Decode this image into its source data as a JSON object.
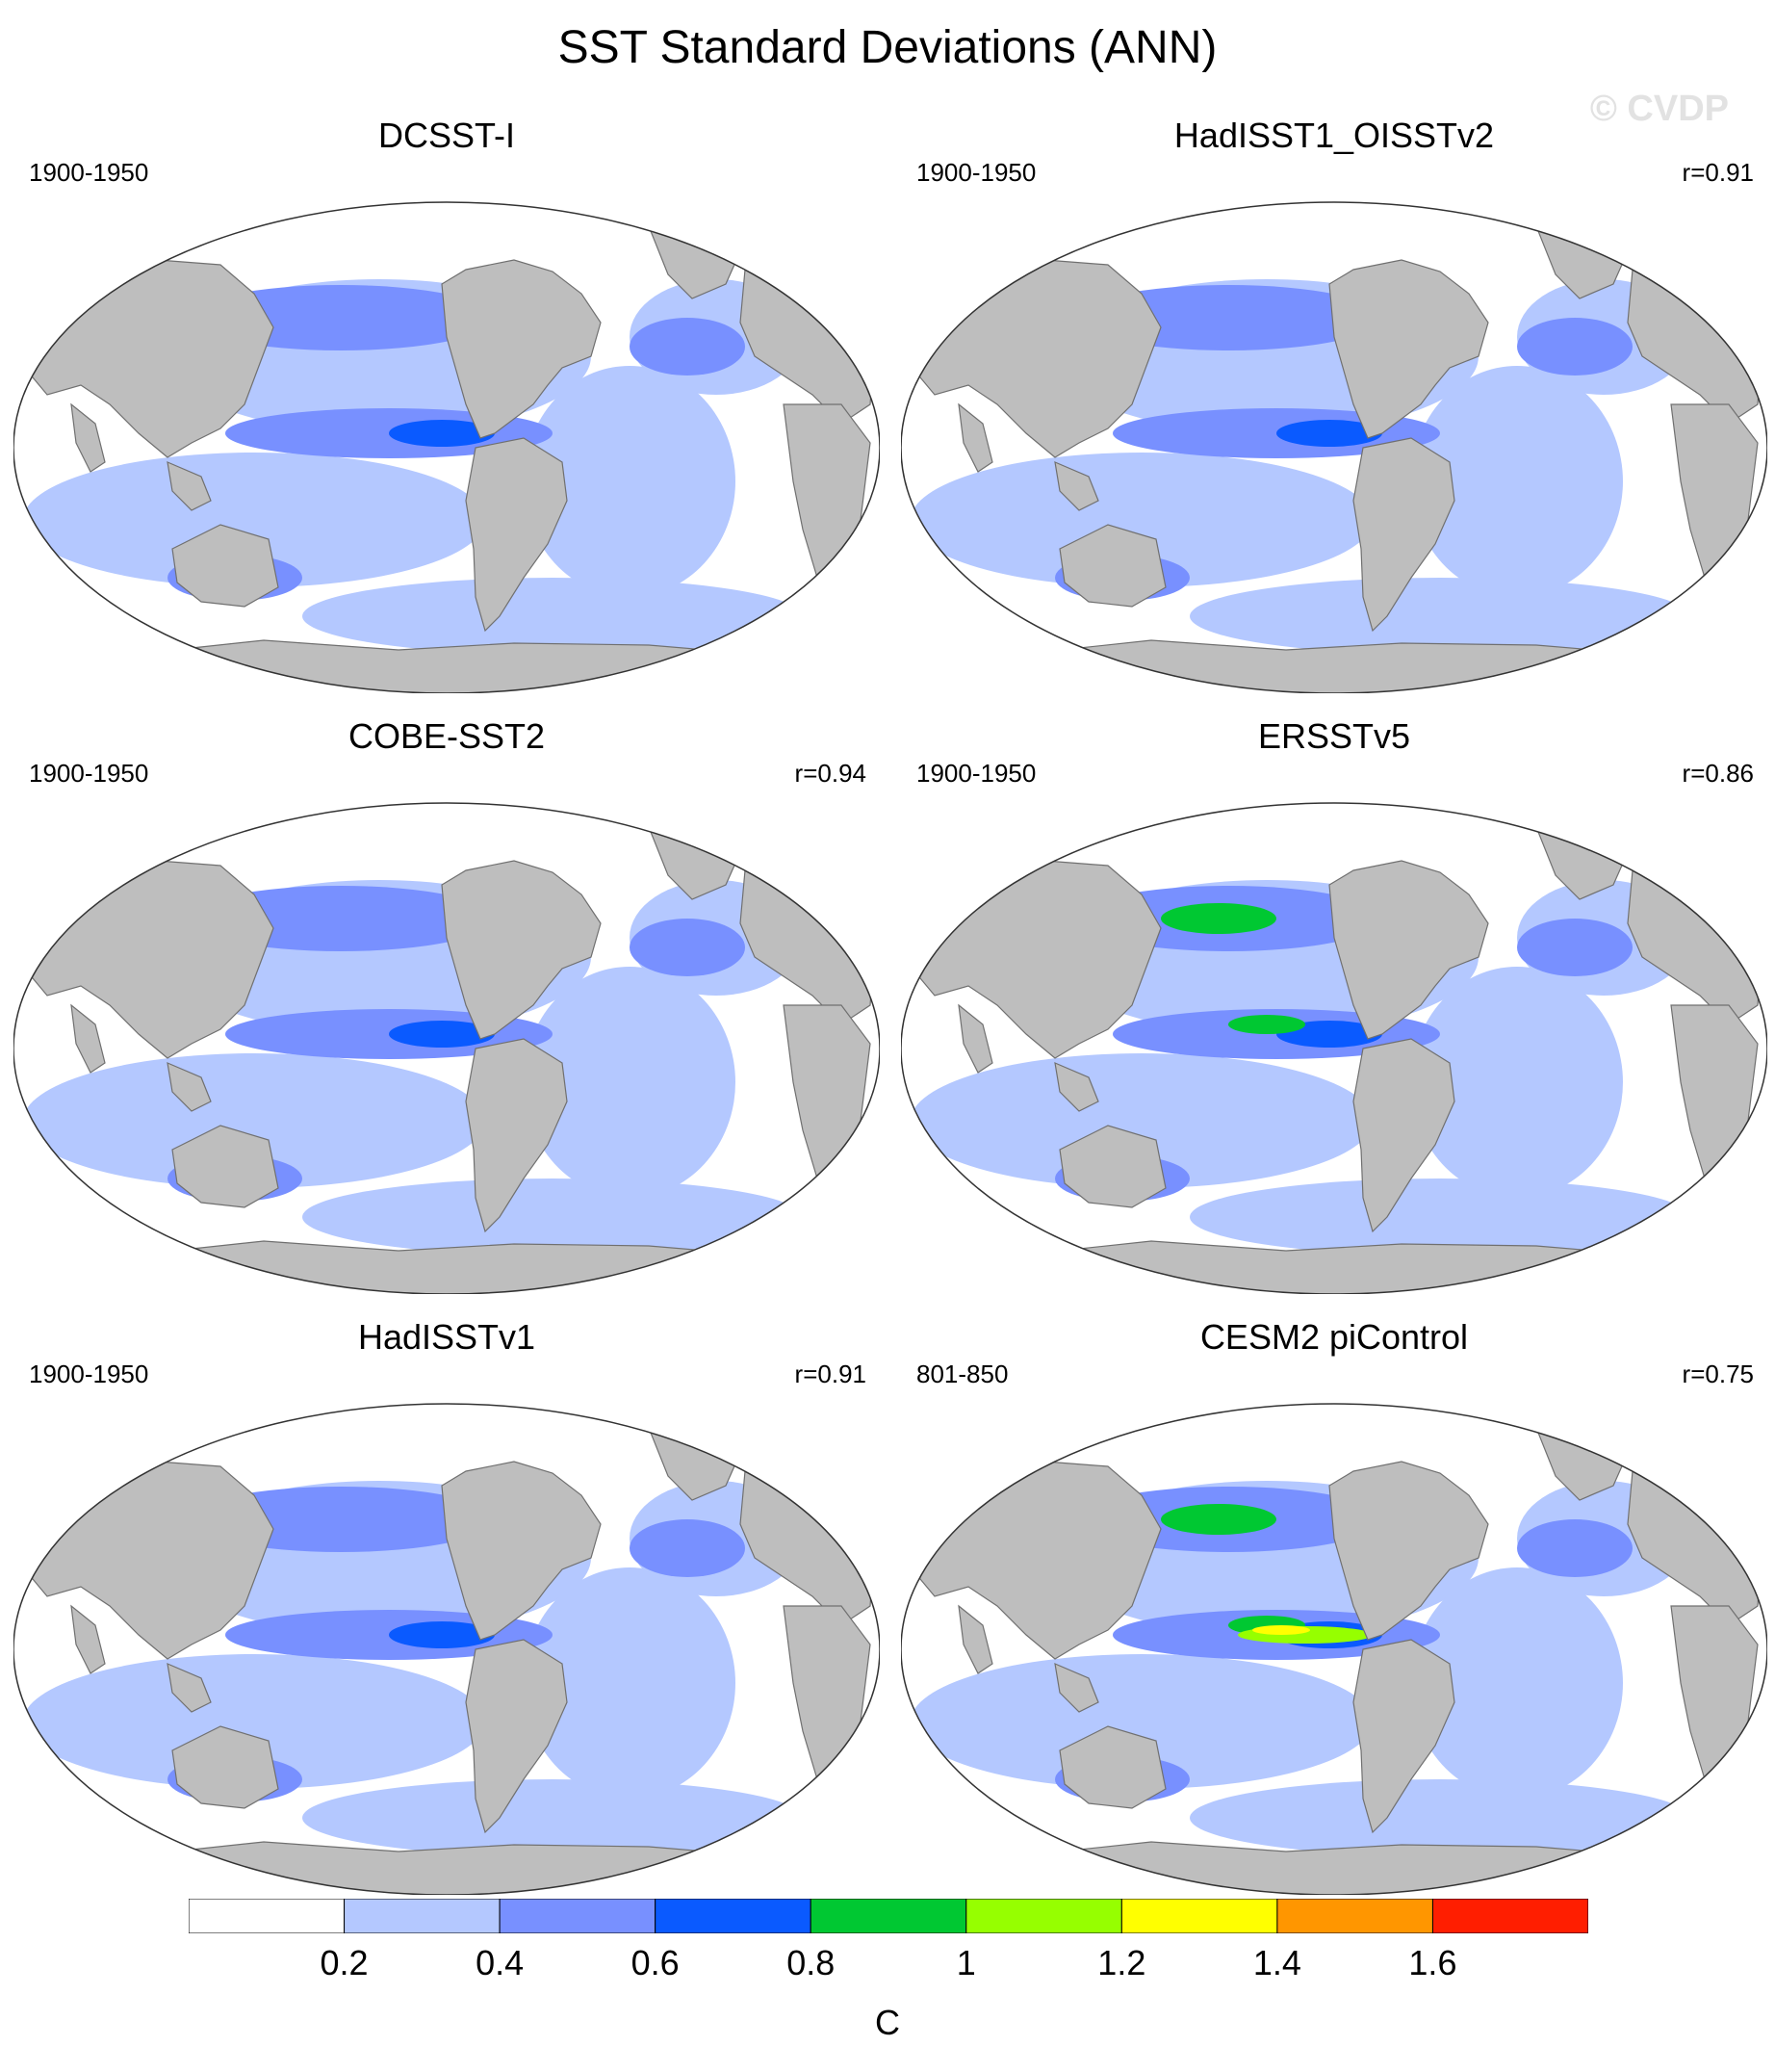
{
  "title": "SST Standard Deviations (ANN)",
  "watermark": "© CVDP",
  "colors": {
    "land": "#bebebe",
    "ocean_bins": [
      "#ffffff",
      "#b4c8ff",
      "#7890ff",
      "#0a5aff",
      "#00c832",
      "#96ff00",
      "#ffff00",
      "#ff9600",
      "#ff1e00"
    ]
  },
  "panels": [
    {
      "title": "DCSST-I",
      "period": "1900-1950",
      "corr": "",
      "max_level": 3
    },
    {
      "title": "HadISST1_OISSTv2",
      "period": "1900-1950",
      "corr": "r=0.91",
      "max_level": 3
    },
    {
      "title": "COBE-SST2",
      "period": "1900-1950",
      "corr": "r=0.94",
      "max_level": 3
    },
    {
      "title": "ERSSTv5",
      "period": "1900-1950",
      "corr": "r=0.86",
      "max_level": 4
    },
    {
      "title": "HadISSTv1",
      "period": "1900-1950",
      "corr": "r=0.91",
      "max_level": 3
    },
    {
      "title": "CESM2 piControl",
      "period": "801-850",
      "corr": "r=0.75",
      "max_level": 6
    }
  ],
  "colorbar": {
    "labels": [
      "0.2",
      "0.4",
      "0.6",
      "0.8",
      "1",
      "1.2",
      "1.4",
      "1.6"
    ],
    "units": "C"
  }
}
